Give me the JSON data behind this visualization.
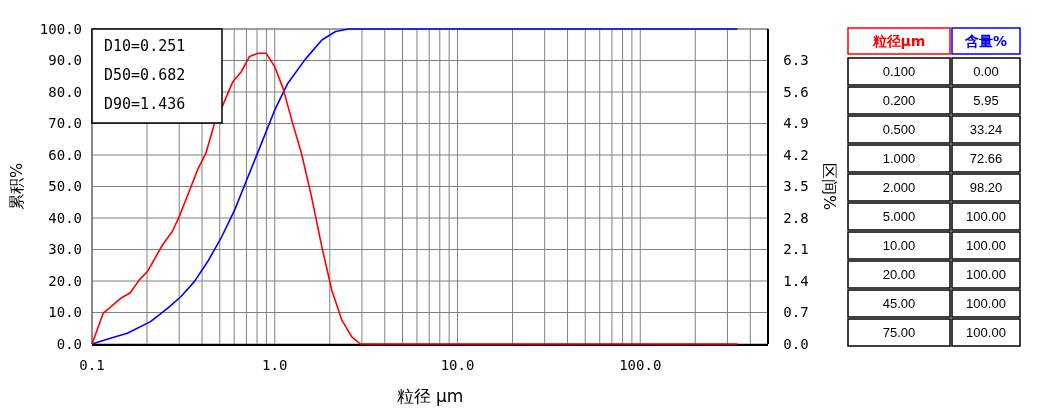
{
  "chart_data": [
    {
      "type": "line",
      "xlabel": "粒径 μm",
      "ylabel": "累积%",
      "y2label": "区间%",
      "log": "x",
      "grid": true,
      "annotations": [
        "D10=0.251",
        "D50=0.682",
        "D90=1.436"
      ],
      "xlim": [
        0.1,
        500
      ],
      "xticks": [
        {
          "value": 0.1,
          "label": "0.1"
        },
        {
          "value": 0.2,
          "label": null
        },
        {
          "value": 0.3,
          "label": null
        },
        {
          "value": 0.4,
          "label": null
        },
        {
          "value": 0.5,
          "label": null
        },
        {
          "value": 0.6,
          "label": null
        },
        {
          "value": 0.7,
          "label": null
        },
        {
          "value": 0.8,
          "label": null
        },
        {
          "value": 0.9,
          "label": null
        },
        {
          "value": 1,
          "label": "1.0"
        },
        {
          "value": 2,
          "label": null
        },
        {
          "value": 3,
          "label": null
        },
        {
          "value": 4,
          "label": null
        },
        {
          "value": 5,
          "label": null
        },
        {
          "value": 6,
          "label": null
        },
        {
          "value": 7,
          "label": null
        },
        {
          "value": 8,
          "label": null
        },
        {
          "value": 9,
          "label": null
        },
        {
          "value": 10,
          "label": "10.0"
        },
        {
          "value": 20,
          "label": null
        },
        {
          "value": 30,
          "label": null
        },
        {
          "value": 40,
          "label": null
        },
        {
          "value": 50,
          "label": null
        },
        {
          "value": 60,
          "label": null
        },
        {
          "value": 70,
          "label": null
        },
        {
          "value": 80,
          "label": null
        },
        {
          "value": 90,
          "label": null
        },
        {
          "value": 100,
          "label": "100.0"
        },
        {
          "value": 200,
          "label": null
        },
        {
          "value": 300,
          "label": null
        },
        {
          "value": 400,
          "label": null
        }
      ],
      "ylim": [
        0,
        100
      ],
      "yticks": [
        {
          "value": 0,
          "label": "0.0"
        },
        {
          "value": 10,
          "label": "10.0"
        },
        {
          "value": 20,
          "label": "20.0"
        },
        {
          "value": 30,
          "label": "30.0"
        },
        {
          "value": 40,
          "label": "40.0"
        },
        {
          "value": 50,
          "label": "50.0"
        },
        {
          "value": 60,
          "label": "60.0"
        },
        {
          "value": 70,
          "label": "70.0"
        },
        {
          "value": 80,
          "label": "80.0"
        },
        {
          "value": 90,
          "label": "90.0"
        },
        {
          "value": 100,
          "label": "100.0"
        }
      ],
      "y2lim": [
        0,
        7
      ],
      "y2ticks": [
        {
          "value": 0,
          "label": "0.0"
        },
        0.7,
        1.4,
        2.1,
        2.8,
        3.5,
        4.2,
        4.9,
        5.6,
        6.3
      ],
      "series": [
        {
          "color": "#0000ff",
          "x": [
            0.1,
            0.126,
            0.156,
            0.209,
            0.259,
            0.306,
            0.363,
            0.429,
            0.507,
            0.603,
            0.714,
            0.846,
            1.0,
            1.18,
            1.46,
            1.81,
            2.15,
            2.54,
            340
          ],
          "values": [
            0,
            1.8,
            3.4,
            7.1,
            11.3,
            15.0,
            19.8,
            26.1,
            33.5,
            42.5,
            53.1,
            63.7,
            74.3,
            82.8,
            90.2,
            96.5,
            99.2,
            100,
            100
          ]
        },
        {
          "color": "#ff0000",
          "axis": "y2",
          "x": [
            0.1,
            0.115,
            0.143,
            0.162,
            0.181,
            0.201,
            0.243,
            0.275,
            0.3,
            0.34,
            0.378,
            0.42,
            0.468,
            0.52,
            0.59,
            0.656,
            0.728,
            0.809,
            0.899,
            1.0,
            1.11,
            1.26,
            1.4,
            1.59,
            1.81,
            2.05,
            2.33,
            2.64,
            2.94,
            340
          ],
          "values": [
            0,
            0.68,
            1.01,
            1.14,
            1.42,
            1.61,
            2.2,
            2.5,
            2.83,
            3.39,
            3.87,
            4.24,
            4.9,
            5.31,
            5.83,
            6.05,
            6.39,
            6.46,
            6.46,
            6.16,
            5.68,
            4.87,
            4.24,
            3.27,
            2.16,
            1.2,
            0.53,
            0.16,
            0,
            0
          ]
        }
      ]
    },
    {
      "type": "other",
      "xlabel": "粒径μm",
      "ylabel": "含量%",
      "categories": [
        "0.100",
        "0.200",
        "0.500",
        "1.000",
        "2.000",
        "5.000",
        "10.00",
        "20.00",
        "45.00",
        "75.00"
      ],
      "value_labels": [
        "0.00",
        "5.95",
        "33.24",
        "72.66",
        "98.20",
        "100.00",
        "100.00",
        "100.00",
        "100.00",
        "100.00"
      ]
    }
  ]
}
